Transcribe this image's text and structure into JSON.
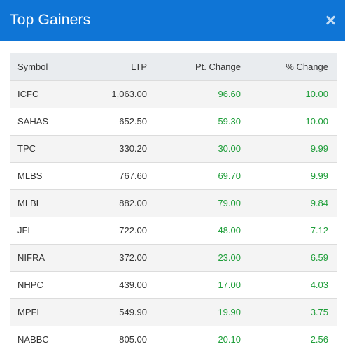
{
  "modal": {
    "title": "Top Gainers",
    "close_icon": "close-icon"
  },
  "table": {
    "headers": [
      "Symbol",
      "LTP",
      "Pt. Change",
      "% Change"
    ],
    "rows": [
      {
        "symbol": "ICFC",
        "ltp": "1,063.00",
        "pt_change": "96.60",
        "pct_change": "10.00"
      },
      {
        "symbol": "SAHAS",
        "ltp": "652.50",
        "pt_change": "59.30",
        "pct_change": "10.00"
      },
      {
        "symbol": "TPC",
        "ltp": "330.20",
        "pt_change": "30.00",
        "pct_change": "9.99"
      },
      {
        "symbol": "MLBS",
        "ltp": "767.60",
        "pt_change": "69.70",
        "pct_change": "9.99"
      },
      {
        "symbol": "MLBL",
        "ltp": "882.00",
        "pt_change": "79.00",
        "pct_change": "9.84"
      },
      {
        "symbol": "JFL",
        "ltp": "722.00",
        "pt_change": "48.00",
        "pct_change": "7.12"
      },
      {
        "symbol": "NIFRA",
        "ltp": "372.00",
        "pt_change": "23.00",
        "pct_change": "6.59"
      },
      {
        "symbol": "NHPC",
        "ltp": "439.00",
        "pt_change": "17.00",
        "pct_change": "4.03"
      },
      {
        "symbol": "MPFL",
        "ltp": "549.90",
        "pt_change": "19.90",
        "pct_change": "3.75"
      },
      {
        "symbol": "NABBC",
        "ltp": "805.00",
        "pt_change": "20.10",
        "pct_change": "2.56"
      }
    ]
  },
  "colors": {
    "header_bg": "#0f75d6",
    "positive": "#1f9e3a"
  }
}
